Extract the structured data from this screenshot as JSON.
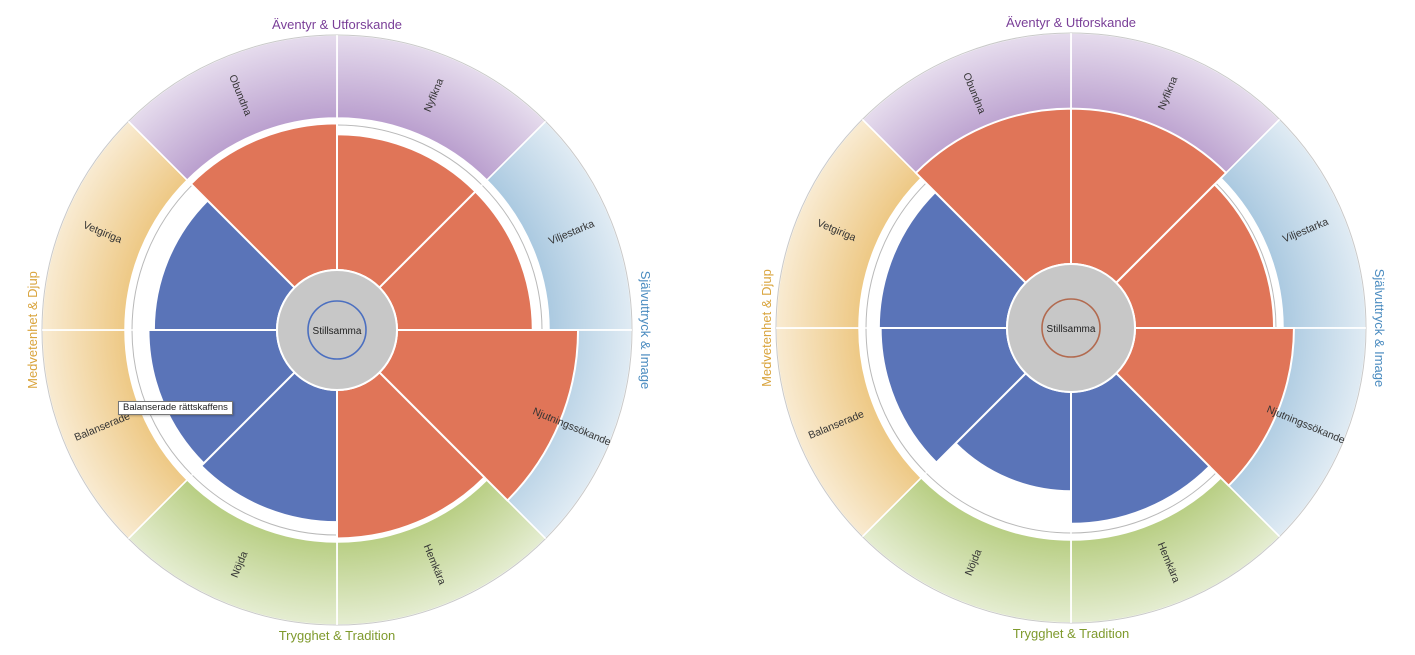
{
  "colors": {
    "orange": "#e07558",
    "blue": "#5a74b8",
    "purple": "#b79bcc",
    "lightblue": "#a7c7df",
    "yellow": "#edc67f",
    "green": "#b5cc7e",
    "center": "#c7c7c7",
    "left_ring": "#4b6fc0",
    "right_ring": "#b26a4f"
  },
  "group_labels": {
    "top": "Äventyr & Utforskande",
    "right": "Självuttryck & Image",
    "bottom": "Trygghet & Tradition",
    "left": "Medvetenhet & Djup"
  },
  "segment_labels": [
    "Nyfikna",
    "Viljestarka",
    "Njutningssökande",
    "Hemkära",
    "Nöjda",
    "Balanserade",
    "Vetgiriga",
    "Obundna"
  ],
  "tooltip": "Balanserade rättskaffens",
  "chart_data": [
    {
      "type": "pie",
      "center_label": "Stillsamma",
      "categories": [
        "Nyfikna",
        "Viljestarka",
        "Njutningssökande",
        "Hemkära",
        "Nöjda",
        "Balanserade",
        "Vetgiriga",
        "Obundna"
      ],
      "values": [
        0.75,
        0.75,
        1.0,
        0.82,
        0.73,
        0.71,
        0.68,
        0.81
      ],
      "fill": [
        "orange",
        "orange",
        "orange",
        "orange",
        "blue",
        "blue",
        "blue",
        "orange"
      ],
      "groups": [
        "purple",
        "lightblue",
        "lightblue",
        "green",
        "green",
        "yellow",
        "yellow",
        "purple"
      ],
      "outer_groups": {
        "Äventyr & Utforskande": [
          "Obundna",
          "Nyfikna"
        ],
        "Självuttryck & Image": [
          "Viljestarka",
          "Njutningssökande"
        ],
        "Trygghet & Tradition": [
          "Hemkära",
          "Nöjda"
        ],
        "Medvetenhet & Djup": [
          "Balanserade",
          "Vetgiriga"
        ]
      }
    },
    {
      "type": "pie",
      "center_label": "Stillsamma",
      "categories": [
        "Nyfikna",
        "Viljestarka",
        "Njutningssökande",
        "Hemkära",
        "Nöjda",
        "Balanserade",
        "Vetgiriga",
        "Obundna"
      ],
      "values": [
        0.88,
        0.79,
        0.9,
        0.75,
        0.57,
        0.72,
        0.73,
        0.88
      ],
      "fill": [
        "orange",
        "orange",
        "orange",
        "blue",
        "blue",
        "blue",
        "blue",
        "orange"
      ],
      "groups": [
        "purple",
        "lightblue",
        "lightblue",
        "green",
        "green",
        "yellow",
        "yellow",
        "purple"
      ],
      "outer_groups": {
        "Äventyr & Utforskande": [
          "Obundna",
          "Nyfikna"
        ],
        "Självuttryck & Image": [
          "Viljestarka",
          "Njutningssökande"
        ],
        "Trygghet & Tradition": [
          "Hemkära",
          "Nöjda"
        ],
        "Medvetenhet & Djup": [
          "Balanserade",
          "Vetgiriga"
        ]
      }
    }
  ]
}
